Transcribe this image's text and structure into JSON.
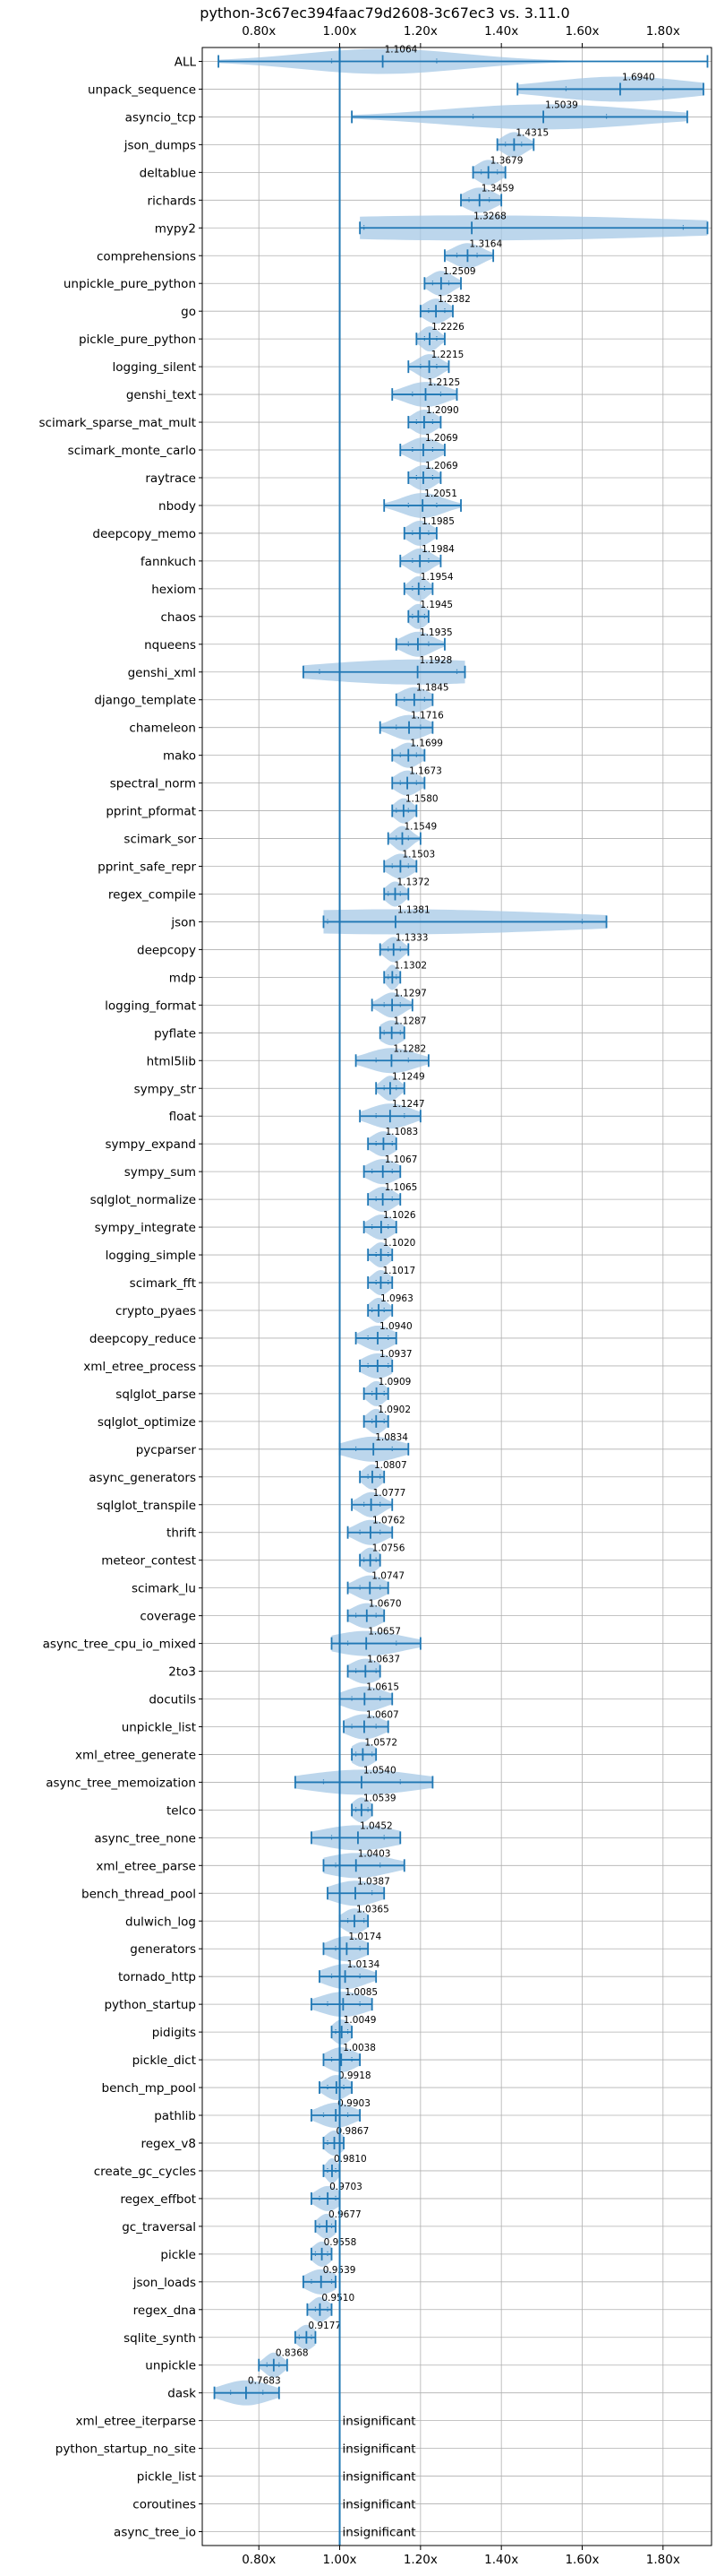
{
  "chart_data": {
    "type": "violin",
    "title": "python-3c67ec394faac79d2608-3c67ec3 vs. 3.11.0",
    "xlabel": "",
    "ylabel": "",
    "xlim": [
      0.66,
      1.92
    ],
    "xticks": [
      0.8,
      1.0,
      1.2,
      1.4,
      1.6,
      1.8
    ],
    "xtick_labels": [
      "0.80x",
      "1.00x",
      "1.20x",
      "1.40x",
      "1.60x",
      "1.80x"
    ],
    "reference_line": 1.0,
    "grid": true,
    "colors": {
      "violin": "#a6c8e6",
      "line": "#1f77b4"
    },
    "insignificant_text": "insignificant",
    "benchmarks": [
      {
        "name": "ALL",
        "value": 1.1064,
        "label": "1.1064",
        "min": 0.7,
        "max": 1.91,
        "q1": 0.98,
        "q3": 1.24
      },
      {
        "name": "unpack_sequence",
        "value": 1.694,
        "label": "1.6940",
        "min": 1.44,
        "max": 1.9,
        "q1": 1.56,
        "q3": 1.8
      },
      {
        "name": "asyncio_tcp",
        "value": 1.5039,
        "label": "1.5039",
        "min": 1.03,
        "max": 1.86,
        "q1": 1.33,
        "q3": 1.66
      },
      {
        "name": "json_dumps",
        "value": 1.4315,
        "label": "1.4315",
        "min": 1.39,
        "max": 1.48,
        "q1": 1.41,
        "q3": 1.45
      },
      {
        "name": "deltablue",
        "value": 1.3679,
        "label": "1.3679",
        "min": 1.33,
        "max": 1.41,
        "q1": 1.35,
        "q3": 1.39
      },
      {
        "name": "richards",
        "value": 1.3459,
        "label": "1.3459",
        "min": 1.3,
        "max": 1.4,
        "q1": 1.32,
        "q3": 1.37
      },
      {
        "name": "mypy2",
        "value": 1.3268,
        "label": "1.3268",
        "min": 1.05,
        "max": 1.91,
        "q1": 1.06,
        "q3": 1.85
      },
      {
        "name": "comprehensions",
        "value": 1.3164,
        "label": "1.3164",
        "min": 1.26,
        "max": 1.38,
        "q1": 1.29,
        "q3": 1.34
      },
      {
        "name": "unpickle_pure_python",
        "value": 1.2509,
        "label": "1.2509",
        "min": 1.21,
        "max": 1.3,
        "q1": 1.23,
        "q3": 1.27
      },
      {
        "name": "go",
        "value": 1.2382,
        "label": "1.2382",
        "min": 1.2,
        "max": 1.28,
        "q1": 1.22,
        "q3": 1.26
      },
      {
        "name": "pickle_pure_python",
        "value": 1.2226,
        "label": "1.2226",
        "min": 1.19,
        "max": 1.26,
        "q1": 1.21,
        "q3": 1.24
      },
      {
        "name": "logging_silent",
        "value": 1.2215,
        "label": "1.2215",
        "min": 1.17,
        "max": 1.27,
        "q1": 1.2,
        "q3": 1.24
      },
      {
        "name": "genshi_text",
        "value": 1.2125,
        "label": "1.2125",
        "min": 1.13,
        "max": 1.29,
        "q1": 1.18,
        "q3": 1.25
      },
      {
        "name": "scimark_sparse_mat_mult",
        "value": 1.209,
        "label": "1.2090",
        "min": 1.17,
        "max": 1.25,
        "q1": 1.19,
        "q3": 1.23
      },
      {
        "name": "scimark_monte_carlo",
        "value": 1.2069,
        "label": "1.2069",
        "min": 1.15,
        "max": 1.26,
        "q1": 1.18,
        "q3": 1.23
      },
      {
        "name": "raytrace",
        "value": 1.2069,
        "label": "1.2069",
        "min": 1.17,
        "max": 1.25,
        "q1": 1.19,
        "q3": 1.23
      },
      {
        "name": "nbody",
        "value": 1.2051,
        "label": "1.2051",
        "min": 1.11,
        "max": 1.3,
        "q1": 1.17,
        "q3": 1.24
      },
      {
        "name": "deepcopy_memo",
        "value": 1.1985,
        "label": "1.1985",
        "min": 1.16,
        "max": 1.24,
        "q1": 1.18,
        "q3": 1.22
      },
      {
        "name": "fannkuch",
        "value": 1.1984,
        "label": "1.1984",
        "min": 1.15,
        "max": 1.25,
        "q1": 1.18,
        "q3": 1.22
      },
      {
        "name": "hexiom",
        "value": 1.1954,
        "label": "1.1954",
        "min": 1.16,
        "max": 1.23,
        "q1": 1.18,
        "q3": 1.21
      },
      {
        "name": "chaos",
        "value": 1.1945,
        "label": "1.1945",
        "min": 1.17,
        "max": 1.22,
        "q1": 1.18,
        "q3": 1.21
      },
      {
        "name": "nqueens",
        "value": 1.1935,
        "label": "1.1935",
        "min": 1.14,
        "max": 1.26,
        "q1": 1.17,
        "q3": 1.22
      },
      {
        "name": "genshi_xml",
        "value": 1.1928,
        "label": "1.1928",
        "min": 0.91,
        "max": 1.31,
        "q1": 0.95,
        "q3": 1.29
      },
      {
        "name": "django_template",
        "value": 1.1845,
        "label": "1.1845",
        "min": 1.14,
        "max": 1.23,
        "q1": 1.16,
        "q3": 1.21
      },
      {
        "name": "chameleon",
        "value": 1.1716,
        "label": "1.1716",
        "min": 1.1,
        "max": 1.23,
        "q1": 1.14,
        "q3": 1.2
      },
      {
        "name": "mako",
        "value": 1.1699,
        "label": "1.1699",
        "min": 1.13,
        "max": 1.21,
        "q1": 1.15,
        "q3": 1.19
      },
      {
        "name": "spectral_norm",
        "value": 1.1673,
        "label": "1.1673",
        "min": 1.13,
        "max": 1.21,
        "q1": 1.15,
        "q3": 1.19
      },
      {
        "name": "pprint_pformat",
        "value": 1.158,
        "label": "1.1580",
        "min": 1.13,
        "max": 1.19,
        "q1": 1.14,
        "q3": 1.17
      },
      {
        "name": "scimark_sor",
        "value": 1.1549,
        "label": "1.1549",
        "min": 1.12,
        "max": 1.2,
        "q1": 1.14,
        "q3": 1.17
      },
      {
        "name": "pprint_safe_repr",
        "value": 1.1503,
        "label": "1.1503",
        "min": 1.11,
        "max": 1.19,
        "q1": 1.13,
        "q3": 1.17
      },
      {
        "name": "regex_compile",
        "value": 1.1372,
        "label": "1.1372",
        "min": 1.11,
        "max": 1.17,
        "q1": 1.12,
        "q3": 1.15
      },
      {
        "name": "json",
        "value": 1.1381,
        "label": "1.1381",
        "min": 0.96,
        "max": 1.66,
        "q1": 0.97,
        "q3": 1.6
      },
      {
        "name": "deepcopy",
        "value": 1.1333,
        "label": "1.1333",
        "min": 1.1,
        "max": 1.17,
        "q1": 1.12,
        "q3": 1.15
      },
      {
        "name": "mdp",
        "value": 1.1302,
        "label": "1.1302",
        "min": 1.11,
        "max": 1.15,
        "q1": 1.12,
        "q3": 1.14
      },
      {
        "name": "logging_format",
        "value": 1.1297,
        "label": "1.1297",
        "min": 1.08,
        "max": 1.18,
        "q1": 1.11,
        "q3": 1.15
      },
      {
        "name": "pyflate",
        "value": 1.1287,
        "label": "1.1287",
        "min": 1.1,
        "max": 1.16,
        "q1": 1.11,
        "q3": 1.15
      },
      {
        "name": "html5lib",
        "value": 1.1282,
        "label": "1.1282",
        "min": 1.04,
        "max": 1.22,
        "q1": 1.09,
        "q3": 1.17
      },
      {
        "name": "sympy_str",
        "value": 1.1249,
        "label": "1.1249",
        "min": 1.09,
        "max": 1.16,
        "q1": 1.11,
        "q3": 1.14
      },
      {
        "name": "float",
        "value": 1.1247,
        "label": "1.1247",
        "min": 1.05,
        "max": 1.2,
        "q1": 1.09,
        "q3": 1.16
      },
      {
        "name": "sympy_expand",
        "value": 1.1083,
        "label": "1.1083",
        "min": 1.07,
        "max": 1.14,
        "q1": 1.09,
        "q3": 1.13
      },
      {
        "name": "sympy_sum",
        "value": 1.1067,
        "label": "1.1067",
        "min": 1.06,
        "max": 1.15,
        "q1": 1.08,
        "q3": 1.13
      },
      {
        "name": "sqlglot_normalize",
        "value": 1.1065,
        "label": "1.1065",
        "min": 1.07,
        "max": 1.15,
        "q1": 1.09,
        "q3": 1.13
      },
      {
        "name": "sympy_integrate",
        "value": 1.1026,
        "label": "1.1026",
        "min": 1.06,
        "max": 1.14,
        "q1": 1.08,
        "q3": 1.12
      },
      {
        "name": "logging_simple",
        "value": 1.102,
        "label": "1.1020",
        "min": 1.07,
        "max": 1.13,
        "q1": 1.09,
        "q3": 1.12
      },
      {
        "name": "scimark_fft",
        "value": 1.1017,
        "label": "1.1017",
        "min": 1.07,
        "max": 1.13,
        "q1": 1.09,
        "q3": 1.12
      },
      {
        "name": "crypto_pyaes",
        "value": 1.0963,
        "label": "1.0963",
        "min": 1.07,
        "max": 1.13,
        "q1": 1.08,
        "q3": 1.11
      },
      {
        "name": "deepcopy_reduce",
        "value": 1.094,
        "label": "1.0940",
        "min": 1.04,
        "max": 1.14,
        "q1": 1.07,
        "q3": 1.12
      },
      {
        "name": "xml_etree_process",
        "value": 1.0937,
        "label": "1.0937",
        "min": 1.05,
        "max": 1.13,
        "q1": 1.07,
        "q3": 1.12
      },
      {
        "name": "sqlglot_parse",
        "value": 1.0909,
        "label": "1.0909",
        "min": 1.06,
        "max": 1.12,
        "q1": 1.08,
        "q3": 1.11
      },
      {
        "name": "sqlglot_optimize",
        "value": 1.0902,
        "label": "1.0902",
        "min": 1.06,
        "max": 1.12,
        "q1": 1.08,
        "q3": 1.11
      },
      {
        "name": "pycparser",
        "value": 1.0834,
        "label": "1.0834",
        "min": 1.0,
        "max": 1.17,
        "q1": 1.04,
        "q3": 1.13
      },
      {
        "name": "async_generators",
        "value": 1.0807,
        "label": "1.0807",
        "min": 1.05,
        "max": 1.11,
        "q1": 1.07,
        "q3": 1.1
      },
      {
        "name": "sqlglot_transpile",
        "value": 1.0777,
        "label": "1.0777",
        "min": 1.03,
        "max": 1.13,
        "q1": 1.06,
        "q3": 1.1
      },
      {
        "name": "thrift",
        "value": 1.0762,
        "label": "1.0762",
        "min": 1.02,
        "max": 1.13,
        "q1": 1.05,
        "q3": 1.1
      },
      {
        "name": "meteor_contest",
        "value": 1.0756,
        "label": "1.0756",
        "min": 1.05,
        "max": 1.1,
        "q1": 1.06,
        "q3": 1.09
      },
      {
        "name": "scimark_lu",
        "value": 1.0747,
        "label": "1.0747",
        "min": 1.02,
        "max": 1.12,
        "q1": 1.05,
        "q3": 1.1
      },
      {
        "name": "coverage",
        "value": 1.067,
        "label": "1.0670",
        "min": 1.02,
        "max": 1.11,
        "q1": 1.04,
        "q3": 1.09
      },
      {
        "name": "async_tree_cpu_io_mixed",
        "value": 1.0657,
        "label": "1.0657",
        "min": 0.98,
        "max": 1.2,
        "q1": 1.02,
        "q3": 1.14
      },
      {
        "name": "2to3",
        "value": 1.0637,
        "label": "1.0637",
        "min": 1.02,
        "max": 1.1,
        "q1": 1.04,
        "q3": 1.09
      },
      {
        "name": "docutils",
        "value": 1.0615,
        "label": "1.0615",
        "min": 1.0,
        "max": 1.13,
        "q1": 1.03,
        "q3": 1.1
      },
      {
        "name": "unpickle_list",
        "value": 1.0607,
        "label": "1.0607",
        "min": 1.01,
        "max": 1.12,
        "q1": 1.03,
        "q3": 1.09
      },
      {
        "name": "xml_etree_generate",
        "value": 1.0572,
        "label": "1.0572",
        "min": 1.03,
        "max": 1.09,
        "q1": 1.04,
        "q3": 1.08
      },
      {
        "name": "async_tree_memoization",
        "value": 1.054,
        "label": "1.0540",
        "min": 0.89,
        "max": 1.23,
        "q1": 0.96,
        "q3": 1.15
      },
      {
        "name": "telco",
        "value": 1.0539,
        "label": "1.0539",
        "min": 1.03,
        "max": 1.08,
        "q1": 1.04,
        "q3": 1.07
      },
      {
        "name": "async_tree_none",
        "value": 1.0452,
        "label": "1.0452",
        "min": 0.93,
        "max": 1.15,
        "q1": 0.98,
        "q3": 1.11
      },
      {
        "name": "xml_etree_parse",
        "value": 1.0403,
        "label": "1.0403",
        "min": 0.96,
        "max": 1.16,
        "q1": 0.99,
        "q3": 1.1
      },
      {
        "name": "bench_thread_pool",
        "value": 1.0387,
        "label": "1.0387",
        "min": 0.97,
        "max": 1.11,
        "q1": 1.0,
        "q3": 1.08
      },
      {
        "name": "dulwich_log",
        "value": 1.0365,
        "label": "1.0365",
        "min": 1.0,
        "max": 1.07,
        "q1": 1.02,
        "q3": 1.06
      },
      {
        "name": "generators",
        "value": 1.0174,
        "label": "1.0174",
        "min": 0.96,
        "max": 1.07,
        "q1": 0.99,
        "q3": 1.05
      },
      {
        "name": "tornado_http",
        "value": 1.0134,
        "label": "1.0134",
        "min": 0.95,
        "max": 1.09,
        "q1": 0.98,
        "q3": 1.05
      },
      {
        "name": "python_startup",
        "value": 1.0085,
        "label": "1.0085",
        "min": 0.93,
        "max": 1.08,
        "q1": 0.97,
        "q3": 1.05
      },
      {
        "name": "pidigits",
        "value": 1.0049,
        "label": "1.0049",
        "min": 0.98,
        "max": 1.03,
        "q1": 0.99,
        "q3": 1.02
      },
      {
        "name": "pickle_dict",
        "value": 1.0038,
        "label": "1.0038",
        "min": 0.96,
        "max": 1.05,
        "q1": 0.98,
        "q3": 1.03
      },
      {
        "name": "bench_mp_pool",
        "value": 0.9918,
        "label": "0.9918",
        "min": 0.95,
        "max": 1.03,
        "q1": 0.97,
        "q3": 1.01
      },
      {
        "name": "pathlib",
        "value": 0.9903,
        "label": "0.9903",
        "min": 0.93,
        "max": 1.05,
        "q1": 0.96,
        "q3": 1.02
      },
      {
        "name": "regex_v8",
        "value": 0.9867,
        "label": "0.9867",
        "min": 0.96,
        "max": 1.01,
        "q1": 0.97,
        "q3": 1.0
      },
      {
        "name": "create_gc_cycles",
        "value": 0.981,
        "label": "0.9810",
        "min": 0.96,
        "max": 1.0,
        "q1": 0.97,
        "q3": 0.99
      },
      {
        "name": "regex_effbot",
        "value": 0.9703,
        "label": "0.9703",
        "min": 0.93,
        "max": 1.0,
        "q1": 0.95,
        "q3": 0.99
      },
      {
        "name": "gc_traversal",
        "value": 0.9677,
        "label": "0.9677",
        "min": 0.94,
        "max": 0.99,
        "q1": 0.95,
        "q3": 0.98
      },
      {
        "name": "pickle",
        "value": 0.9558,
        "label": "0.9558",
        "min": 0.93,
        "max": 0.98,
        "q1": 0.94,
        "q3": 0.97
      },
      {
        "name": "json_loads",
        "value": 0.9539,
        "label": "0.9539",
        "min": 0.91,
        "max": 0.99,
        "q1": 0.93,
        "q3": 0.98
      },
      {
        "name": "regex_dna",
        "value": 0.951,
        "label": "0.9510",
        "min": 0.92,
        "max": 0.98,
        "q1": 0.94,
        "q3": 0.97
      },
      {
        "name": "sqlite_synth",
        "value": 0.9177,
        "label": "0.9177",
        "min": 0.89,
        "max": 0.94,
        "q1": 0.9,
        "q3": 0.93
      },
      {
        "name": "unpickle",
        "value": 0.8368,
        "label": "0.8368",
        "min": 0.8,
        "max": 0.87,
        "q1": 0.82,
        "q3": 0.85
      },
      {
        "name": "dask",
        "value": 0.7683,
        "label": "0.7683",
        "min": 0.69,
        "max": 0.85,
        "q1": 0.73,
        "q3": 0.81
      },
      {
        "name": "xml_etree_iterparse",
        "value": null,
        "insignificant": true
      },
      {
        "name": "python_startup_no_site",
        "value": null,
        "insignificant": true
      },
      {
        "name": "pickle_list",
        "value": null,
        "insignificant": true
      },
      {
        "name": "coroutines",
        "value": null,
        "insignificant": true
      },
      {
        "name": "async_tree_io",
        "value": null,
        "insignificant": true
      }
    ]
  }
}
